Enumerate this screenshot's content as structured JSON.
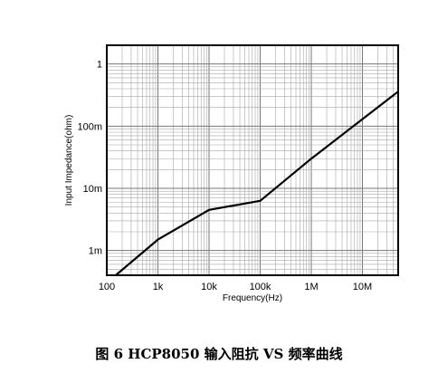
{
  "caption": "图 6 HCP8050 输入阻抗 VS 频率曲线",
  "chart_data": {
    "type": "line",
    "title": "",
    "xlabel": "Frequency(Hz)",
    "ylabel": "Input Impedance(ohm)",
    "x_scale": "log",
    "y_scale": "log",
    "xlim": [
      100,
      50000000
    ],
    "ylim": [
      0.0004,
      2
    ],
    "grid": true,
    "legend": "none",
    "x_ticks": [
      {
        "value": 100,
        "label": "100"
      },
      {
        "value": 1000,
        "label": "1k"
      },
      {
        "value": 10000,
        "label": "10k"
      },
      {
        "value": 100000,
        "label": "100k"
      },
      {
        "value": 1000000,
        "label": "1M"
      },
      {
        "value": 10000000,
        "label": "10M"
      }
    ],
    "y_ticks": [
      {
        "value": 0.001,
        "label": "1m"
      },
      {
        "value": 0.01,
        "label": "10m"
      },
      {
        "value": 0.1,
        "label": "100m"
      },
      {
        "value": 1,
        "label": "1"
      }
    ],
    "series": [
      {
        "color": "#000000",
        "x": [
          150,
          1000,
          10000,
          100000,
          1000000,
          50000000
        ],
        "y": [
          0.0004,
          0.0015,
          0.0045,
          0.0063,
          0.03,
          0.36
        ]
      }
    ]
  }
}
